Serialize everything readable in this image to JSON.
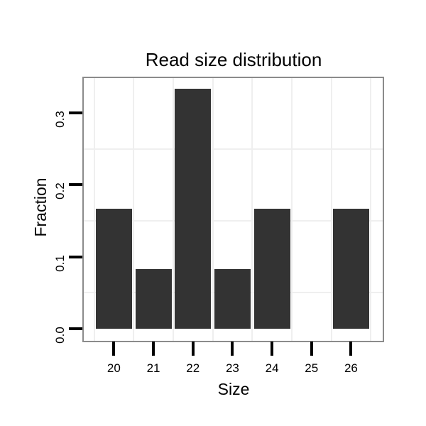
{
  "chart_data": {
    "type": "bar",
    "title": "Read size distribution",
    "xlabel": "Size",
    "ylabel": "Fraction",
    "categories": [
      "20",
      "21",
      "22",
      "23",
      "24",
      "25",
      "26"
    ],
    "values": [
      0.1667,
      0.0833,
      0.3333,
      0.0833,
      0.1667,
      0,
      0.1667
    ],
    "ylim": [
      -0.017,
      0.35
    ],
    "yticks": [
      {
        "value": 0.0,
        "label": "0.0"
      },
      {
        "value": 0.1,
        "label": "0.1"
      },
      {
        "value": 0.2,
        "label": "0.2"
      },
      {
        "value": 0.3,
        "label": "0.3"
      }
    ],
    "y_minor_gridlines": [
      0.05,
      0.15,
      0.25
    ],
    "x_minor_gridlines_between_categories": true,
    "grid": "minor-only",
    "legend": "none",
    "colors": {
      "bar_fill": "#333333",
      "panel_border": "#8b8b8b",
      "gridline": "#efefef",
      "tick": "#000000",
      "text": "#000000",
      "background": "#ffffff"
    }
  }
}
